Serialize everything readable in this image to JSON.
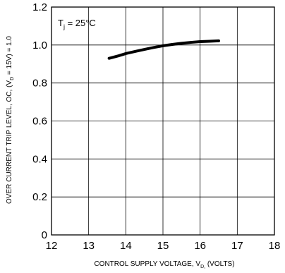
{
  "chart_data": {
    "type": "line",
    "title": "",
    "xlabel": "CONTROL SUPPLY VOLTAGE, V",
    "xlabel_sub": "D,",
    "xlabel_tail": " (VOLTS)",
    "ylabel": "OVER CURRENT TRIP LEVEL, OC, (V",
    "ylabel_sub": "D",
    "ylabel_tail": " = 15V) = 1.0",
    "xlim": [
      12,
      18
    ],
    "ylim": [
      0,
      1.2
    ],
    "xticks": [
      "12",
      "13",
      "14",
      "15",
      "16",
      "17",
      "18"
    ],
    "yticks": [
      "0",
      "0.2",
      "0.4",
      "0.6",
      "0.8",
      "1.0",
      "1.2"
    ],
    "grid": true,
    "annotation": {
      "main": "T",
      "sub": "j",
      "tail": " = 25°C"
    },
    "series": [
      {
        "x": [
          13.55,
          13.8,
          14.0,
          14.25,
          14.5,
          14.75,
          15.0,
          15.25,
          15.5,
          15.75,
          16.0,
          16.25,
          16.5
        ],
        "y": [
          0.93,
          0.943,
          0.955,
          0.966,
          0.977,
          0.987,
          0.996,
          1.003,
          1.009,
          1.014,
          1.018,
          1.02,
          1.022
        ]
      }
    ]
  }
}
